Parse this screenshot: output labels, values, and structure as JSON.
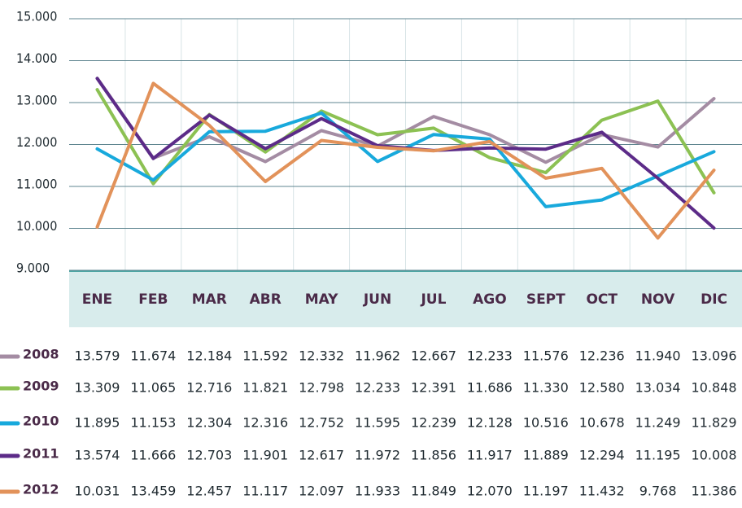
{
  "chart_data": {
    "type": "line",
    "categories": [
      "ENE",
      "FEB",
      "MAR",
      "ABR",
      "MAY",
      "JUN",
      "JUL",
      "AGO",
      "SEPT",
      "OCT",
      "NOV",
      "DIC"
    ],
    "series": [
      {
        "name": "2008",
        "color": "#a48ca3",
        "values": [
          13579,
          11674,
          12184,
          11592,
          12332,
          11962,
          12667,
          12233,
          11576,
          12236,
          11940,
          13096
        ],
        "value_labels": [
          "13.579",
          "11.674",
          "12.184",
          "11.592",
          "12.332",
          "11.962",
          "12.667",
          "12.233",
          "11.576",
          "12.236",
          "11.940",
          "13.096"
        ]
      },
      {
        "name": "2009",
        "color": "#8cc153",
        "values": [
          13309,
          11065,
          12716,
          11821,
          12798,
          12233,
          12391,
          11686,
          11330,
          12580,
          13034,
          10848
        ],
        "value_labels": [
          "13.309",
          "11.065",
          "12.716",
          "11.821",
          "12.798",
          "12.233",
          "12.391",
          "11.686",
          "11.330",
          "12.580",
          "13.034",
          "10.848"
        ]
      },
      {
        "name": "2010",
        "color": "#18a9dc",
        "values": [
          11895,
          11153,
          12304,
          12316,
          12752,
          11595,
          12239,
          12128,
          10516,
          10678,
          11249,
          11829
        ],
        "value_labels": [
          "11.895",
          "11.153",
          "12.304",
          "12.316",
          "12.752",
          "11.595",
          "12.239",
          "12.128",
          "10.516",
          "10.678",
          "11.249",
          "11.829"
        ]
      },
      {
        "name": "2011",
        "color": "#5c2b88",
        "values": [
          13574,
          11666,
          12703,
          11901,
          12617,
          11972,
          11856,
          11917,
          11889,
          12294,
          11195,
          10008
        ],
        "value_labels": [
          "13.574",
          "11.666",
          "12.703",
          "11.901",
          "12.617",
          "11.972",
          "11.856",
          "11.917",
          "11.889",
          "12.294",
          "11.195",
          "10.008"
        ]
      },
      {
        "name": "2012",
        "color": "#e2925a",
        "values": [
          10031,
          13459,
          12457,
          11117,
          12097,
          11933,
          11849,
          12070,
          11197,
          11432,
          9768,
          11386
        ],
        "value_labels": [
          "10.031",
          "13.459",
          "12.457",
          "11.117",
          "12.097",
          "11.933",
          "11.849",
          "12.070",
          "11.197",
          "11.432",
          "9.768",
          "11.386"
        ]
      }
    ],
    "ylim": [
      9000,
      15000
    ],
    "yticks": [
      {
        "value": 9000,
        "label": "9.000"
      },
      {
        "value": 10000,
        "label": "10.000"
      },
      {
        "value": 11000,
        "label": "11.000"
      },
      {
        "value": 12000,
        "label": "12.000"
      },
      {
        "value": 13000,
        "label": "13.000"
      },
      {
        "value": 14000,
        "label": "14.000"
      },
      {
        "value": 15000,
        "label": "15.000"
      }
    ],
    "grid": true
  }
}
